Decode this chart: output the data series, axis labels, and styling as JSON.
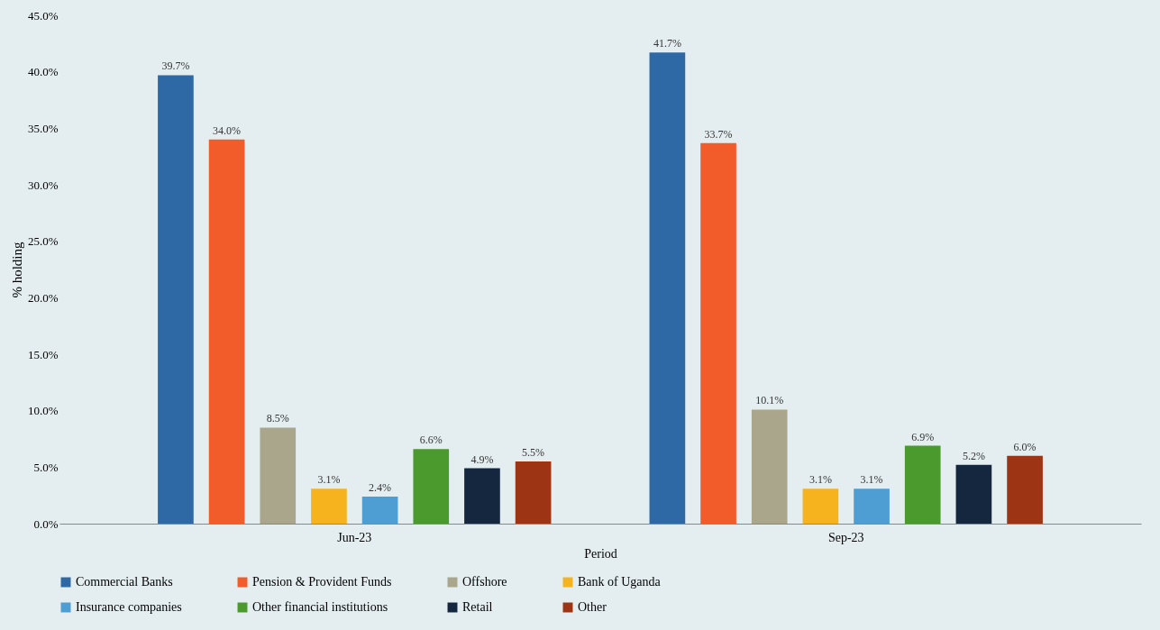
{
  "chart_data": {
    "type": "bar",
    "xlabel": "Period",
    "ylabel": "% holding",
    "categories": [
      "Jun-23",
      "Sep-23"
    ],
    "series": [
      {
        "name": "Commercial Banks",
        "color": "#2e69a6",
        "values": [
          39.7,
          41.7
        ],
        "value_labels": [
          "39.7%",
          "41.7%"
        ]
      },
      {
        "name": "Pension & Provident Funds",
        "color": "#f25c2a",
        "values": [
          34.0,
          33.7
        ],
        "value_labels": [
          "34.0%",
          "33.7%"
        ]
      },
      {
        "name": "Offshore",
        "color": "#a9a68b",
        "values": [
          8.5,
          10.1
        ],
        "value_labels": [
          "8.5%",
          "10.1%"
        ]
      },
      {
        "name": "Bank of Uganda",
        "color": "#f6b31e",
        "values": [
          3.1,
          3.1
        ],
        "value_labels": [
          "3.1%",
          "3.1%"
        ]
      },
      {
        "name": "Insurance companies",
        "color": "#4e9dd3",
        "values": [
          2.4,
          3.1
        ],
        "value_labels": [
          "2.4%",
          "3.1%"
        ]
      },
      {
        "name": "Other financial institutions",
        "color": "#4b9a2d",
        "values": [
          6.6,
          6.9
        ],
        "value_labels": [
          "6.6%",
          "6.9%"
        ]
      },
      {
        "name": "Retail",
        "color": "#14273f",
        "values": [
          4.9,
          5.2
        ],
        "value_labels": [
          "4.9%",
          "5.2%"
        ]
      },
      {
        "name": "Other",
        "color": "#9d3514",
        "values": [
          5.5,
          6.0
        ],
        "value_labels": [
          "5.5%",
          "6.0%"
        ]
      }
    ],
    "ylim": [
      0,
      45
    ],
    "yticks": [
      {
        "value": 0,
        "label": "0.0%"
      },
      {
        "value": 5,
        "label": "5.0%"
      },
      {
        "value": 10,
        "label": "10.0%"
      },
      {
        "value": 15,
        "label": "15.0%"
      },
      {
        "value": 20,
        "label": "20.0%"
      },
      {
        "value": 25,
        "label": "25.0%"
      },
      {
        "value": 30,
        "label": "30.0%"
      },
      {
        "value": 35,
        "label": "35.0%"
      },
      {
        "value": 40,
        "label": "40.0%"
      },
      {
        "value": 45,
        "label": "45.0%"
      }
    ],
    "legend": "bottom"
  }
}
